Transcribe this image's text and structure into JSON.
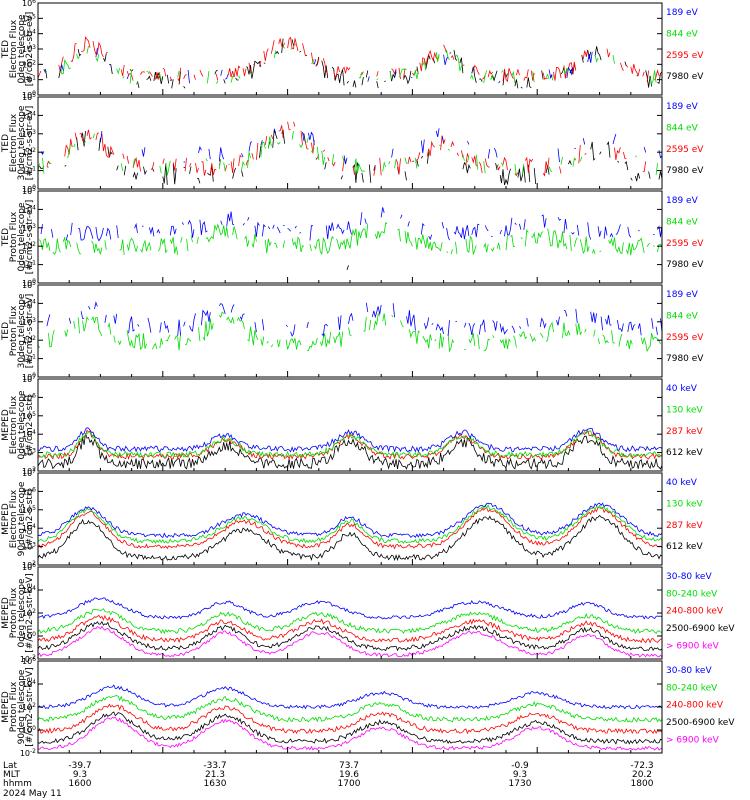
{
  "chart_data": [
    {
      "type": "line",
      "ylabel": [
        "TED",
        "Electron Flux",
        "0deg telescope",
        "[#/cm2-s-str-eV]"
      ],
      "y_log": true,
      "ylim_exp": [
        0,
        6
      ],
      "ytick_labels": [
        "10^0",
        "10^1",
        "10^2",
        "10^3",
        "10^4",
        "10^5",
        "10^6"
      ],
      "series": [
        {
          "name": "7980 eV",
          "color": "#000000",
          "base": 1.0,
          "noise": 0.6,
          "fill": 0.55
        },
        {
          "name": "2595 eV",
          "color": "#ff0000",
          "base": 1.3,
          "noise": 0.5,
          "fill": 0.6
        },
        {
          "name": "844 eV",
          "color": "#00dd00",
          "base": 1.1,
          "noise": 0.5,
          "fill": 0.45
        },
        {
          "name": "189 eV",
          "color": "#0000ff",
          "base": 1.2,
          "noise": 0.5,
          "fill": 0.3
        }
      ],
      "peaks": [
        [
          0.08,
          2.2,
          0.04
        ],
        [
          0.4,
          2.4,
          0.05
        ],
        [
          0.65,
          1.6,
          0.04
        ],
        [
          0.9,
          1.8,
          0.04
        ]
      ]
    },
    {
      "type": "line",
      "ylabel": [
        "TED",
        "Electron Flux",
        "30deg telescope",
        "[#/cm2-s-str-eV]"
      ],
      "y_log": true,
      "ylim_exp": [
        0,
        5
      ],
      "ytick_labels": [
        "10^0",
        "10^1",
        "10^2",
        "10^3",
        "10^4",
        "10^5"
      ],
      "series": [
        {
          "name": "7980 eV",
          "color": "#000000",
          "base": 0.8,
          "noise": 0.6,
          "fill": 0.5
        },
        {
          "name": "2595 eV",
          "color": "#ff0000",
          "base": 1.2,
          "noise": 0.5,
          "fill": 0.55
        },
        {
          "name": "844 eV",
          "color": "#00dd00",
          "base": 1.2,
          "noise": 0.5,
          "fill": 0.45
        },
        {
          "name": "189 eV",
          "color": "#0000ff",
          "base": 1.8,
          "noise": 0.5,
          "fill": 0.35
        }
      ],
      "peaks": [
        [
          0.08,
          2.0,
          0.04
        ],
        [
          0.4,
          2.2,
          0.05
        ],
        [
          0.65,
          1.4,
          0.04
        ],
        [
          0.9,
          1.4,
          0.04
        ]
      ]
    },
    {
      "type": "line",
      "ylabel": [
        "TED",
        "Proton Flux",
        "0deg telescope",
        "[#/cm2-s-str-eV]"
      ],
      "y_log": true,
      "ylim_exp": [
        0,
        5
      ],
      "ytick_labels": [
        "10^0",
        "10^1",
        "10^2",
        "10^3",
        "10^4",
        "10^5"
      ],
      "series": [
        {
          "name": "7980 eV",
          "color": "#000000",
          "base": 0.6,
          "noise": 0.4,
          "fill": 0.06
        },
        {
          "name": "2595 eV",
          "color": "#ff0000",
          "base": 1.0,
          "noise": 0.4,
          "fill": 0.0
        },
        {
          "name": "844 eV",
          "color": "#00dd00",
          "base": 2.0,
          "noise": 0.5,
          "fill": 0.8
        },
        {
          "name": "189 eV",
          "color": "#0000ff",
          "base": 2.8,
          "noise": 0.5,
          "fill": 0.6
        }
      ],
      "peaks": [
        [
          0.3,
          1.0,
          0.04
        ],
        [
          0.55,
          1.1,
          0.05
        ],
        [
          0.8,
          0.6,
          0.06
        ]
      ]
    },
    {
      "type": "line",
      "ylabel": [
        "TED",
        "Proton Flux",
        "30deg telescope",
        "[#/cm2-s-str-eV]"
      ],
      "y_log": true,
      "ylim_exp": [
        0,
        5
      ],
      "ytick_labels": [
        "10^0",
        "10^1",
        "10^2",
        "10^3",
        "10^4",
        "10^5"
      ],
      "series": [
        {
          "name": "7980 eV",
          "color": "#000000",
          "base": 0.5,
          "noise": 0.3,
          "fill": 0.0
        },
        {
          "name": "2595 eV",
          "color": "#ff0000",
          "base": 1.0,
          "noise": 0.4,
          "fill": 0.0
        },
        {
          "name": "844 eV",
          "color": "#00dd00",
          "base": 1.9,
          "noise": 0.5,
          "fill": 0.75
        },
        {
          "name": "189 eV",
          "color": "#0000ff",
          "base": 2.7,
          "noise": 0.5,
          "fill": 0.55
        }
      ],
      "peaks": [
        [
          0.08,
          1.2,
          0.05
        ],
        [
          0.3,
          1.4,
          0.04
        ],
        [
          0.55,
          1.4,
          0.05
        ],
        [
          0.85,
          0.8,
          0.06
        ]
      ]
    },
    {
      "type": "line",
      "ylabel": [
        "MEPED",
        "Electron Flux",
        "0deg telescope",
        "[#/cm2-s-str]"
      ],
      "y_log": true,
      "ylim_exp": [
        2,
        7
      ],
      "ytick_labels": [
        "10^2",
        "10^3",
        "10^4",
        "10^5",
        "10^6",
        "10^7"
      ],
      "series": [
        {
          "name": "612 keV",
          "color": "#000000",
          "base": 2.4,
          "noise": 0.3,
          "fill": 1.0
        },
        {
          "name": "287 keV",
          "color": "#ff0000",
          "base": 2.8,
          "noise": 0.15,
          "fill": 1.0
        },
        {
          "name": "130 keV",
          "color": "#00dd00",
          "base": 2.9,
          "noise": 0.15,
          "fill": 1.0
        },
        {
          "name": "40 keV",
          "color": "#0000ff",
          "base": 3.2,
          "noise": 0.15,
          "fill": 1.0
        }
      ],
      "peaks": [
        [
          0.08,
          1.4,
          0.02
        ],
        [
          0.3,
          1.0,
          0.03
        ],
        [
          0.5,
          1.2,
          0.03
        ],
        [
          0.68,
          1.2,
          0.03
        ],
        [
          0.88,
          1.4,
          0.03
        ]
      ]
    },
    {
      "type": "line",
      "ylabel": [
        "MEPED",
        "Electron Flux",
        "90deg telescope",
        "[#/cm2-s-str]"
      ],
      "y_log": true,
      "ylim_exp": [
        2,
        7
      ],
      "ytick_labels": [
        "10^2",
        "10^3",
        "10^4",
        "10^5",
        "10^6",
        "10^7"
      ],
      "series": [
        {
          "name": "612 keV",
          "color": "#000000",
          "base": 2.4,
          "noise": 0.15,
          "fill": 1.0
        },
        {
          "name": "287 keV",
          "color": "#ff0000",
          "base": 3.0,
          "noise": 0.12,
          "fill": 1.0
        },
        {
          "name": "130 keV",
          "color": "#00dd00",
          "base": 3.3,
          "noise": 0.12,
          "fill": 1.0
        },
        {
          "name": "40 keV",
          "color": "#0000ff",
          "base": 3.6,
          "noise": 0.12,
          "fill": 1.0
        }
      ],
      "peaks": [
        [
          0.08,
          2.0,
          0.04
        ],
        [
          0.33,
          1.5,
          0.05
        ],
        [
          0.5,
          1.3,
          0.03
        ],
        [
          0.72,
          2.2,
          0.05
        ],
        [
          0.9,
          2.2,
          0.05
        ]
      ]
    },
    {
      "type": "line",
      "ylabel": [
        "MEPED",
        "Proton Flux",
        "0deg telescope",
        "[#/cm2-s-str-keV]"
      ],
      "y_log": true,
      "ylim_exp": [
        -2,
        6
      ],
      "ytick_labels": [
        "10^-2",
        "10^0",
        "10^2",
        "10^4",
        "10^6"
      ],
      "series": [
        {
          "name": "> 6900 keV",
          "color": "#ff00ff",
          "base": -1.7,
          "noise": 0.15,
          "fill": 1.0
        },
        {
          "name": "2500-6900 keV",
          "color": "#000000",
          "base": -1.1,
          "noise": 0.2,
          "fill": 1.0
        },
        {
          "name": "240-800 keV",
          "color": "#ff0000",
          "base": -0.4,
          "noise": 0.2,
          "fill": 1.0
        },
        {
          "name": "80-240 keV",
          "color": "#00dd00",
          "base": 0.4,
          "noise": 0.2,
          "fill": 1.0
        },
        {
          "name": "30-80 keV",
          "color": "#0000ff",
          "base": 1.6,
          "noise": 0.15,
          "fill": 1.0
        }
      ],
      "peaks": [
        [
          0.1,
          2.4,
          0.05
        ],
        [
          0.3,
          2.0,
          0.04
        ],
        [
          0.45,
          2.0,
          0.05
        ],
        [
          0.7,
          2.0,
          0.06
        ],
        [
          0.88,
          1.8,
          0.04
        ]
      ]
    },
    {
      "type": "line",
      "ylabel": [
        "MEPED",
        "Proton Flux",
        "90deg telescope",
        "[#/cm2-s-str-keV]"
      ],
      "y_log": true,
      "ylim_exp": [
        -2,
        6
      ],
      "ytick_labels": [
        "10^-2",
        "10^0",
        "10^2",
        "10^4",
        "10^6"
      ],
      "series": [
        {
          "name": "> 6900 keV",
          "color": "#ff00ff",
          "base": -1.6,
          "noise": 0.15,
          "fill": 1.0
        },
        {
          "name": "2500-6900 keV",
          "color": "#000000",
          "base": -1.0,
          "noise": 0.2,
          "fill": 1.0
        },
        {
          "name": "240-800 keV",
          "color": "#ff0000",
          "base": -0.1,
          "noise": 0.2,
          "fill": 1.0
        },
        {
          "name": "80-240 keV",
          "color": "#00dd00",
          "base": 0.9,
          "noise": 0.2,
          "fill": 1.0
        },
        {
          "name": "30-80 keV",
          "color": "#0000ff",
          "base": 2.0,
          "noise": 0.15,
          "fill": 1.0
        }
      ],
      "peaks": [
        [
          0.12,
          2.6,
          0.05
        ],
        [
          0.3,
          2.4,
          0.05
        ],
        [
          0.55,
          1.8,
          0.05
        ],
        [
          0.8,
          1.8,
          0.05
        ]
      ]
    }
  ],
  "footer": {
    "row_labels": [
      "Lat",
      "MLT",
      "hhmm"
    ],
    "date": "2024 May 11",
    "columns": [
      {
        "lat": "-39.7",
        "mlt": "9.3",
        "hhmm": "1600"
      },
      {
        "lat": "-33.7",
        "mlt": "21.3",
        "hhmm": "1630"
      },
      {
        "lat": "73.7",
        "mlt": "19.6",
        "hhmm": "1700"
      },
      {
        "lat": "-0.9",
        "mlt": "9.3",
        "hhmm": "1730"
      },
      {
        "lat": "-72.3",
        "mlt": "20.2",
        "hhmm": "1800"
      }
    ]
  }
}
